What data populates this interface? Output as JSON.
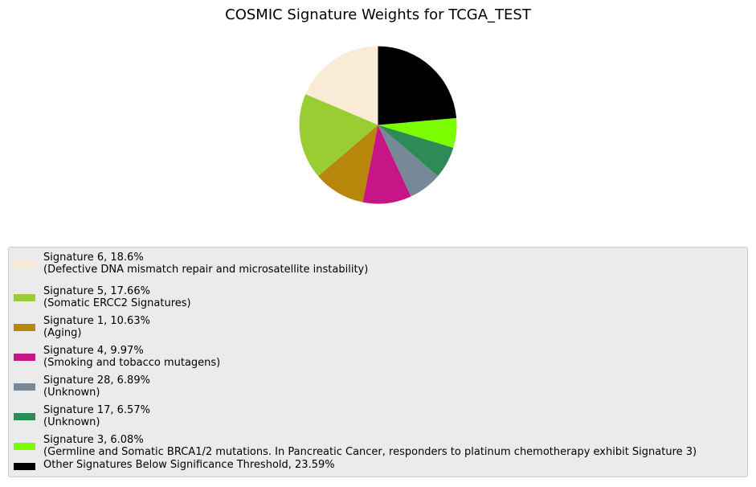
{
  "chart_data": {
    "type": "pie",
    "title": "COSMIC Signature Weights for TCGA_TEST",
    "start_angle_deg": 90,
    "direction": "counterclockwise",
    "legend_position": "bottom",
    "slices": [
      {
        "label": "Signature 6, 18.6%",
        "description": "(Defective DNA mismatch repair and microsatellite instability)",
        "value": 18.6,
        "color": "#faebd7"
      },
      {
        "label": "Signature 5, 17.66%",
        "description": "(Somatic ERCC2 Signatures)",
        "value": 17.66,
        "color": "#9acd32"
      },
      {
        "label": "Signature 1, 10.63%",
        "description": "(Aging)",
        "value": 10.63,
        "color": "#b8860b"
      },
      {
        "label": "Signature 4, 9.97%",
        "description": "(Smoking and tobacco mutagens)",
        "value": 9.97,
        "color": "#c71585"
      },
      {
        "label": "Signature 28, 6.89%",
        "description": "(Unknown)",
        "value": 6.89,
        "color": "#778899"
      },
      {
        "label": "Signature 17, 6.57%",
        "description": "(Unknown)",
        "value": 6.57,
        "color": "#2e8b57"
      },
      {
        "label": "Signature 3, 6.08%",
        "description": "(Germline and Somatic BRCA1/2 mutations. In Pancreatic Cancer, responders to platinum chemotherapy exhibit Signature 3)",
        "value": 6.08,
        "color": "#7cfc00"
      },
      {
        "label": "Other Signatures Below Significance Threshold, 23.59%",
        "description": "",
        "value": 23.59,
        "color": "#000000"
      }
    ]
  }
}
